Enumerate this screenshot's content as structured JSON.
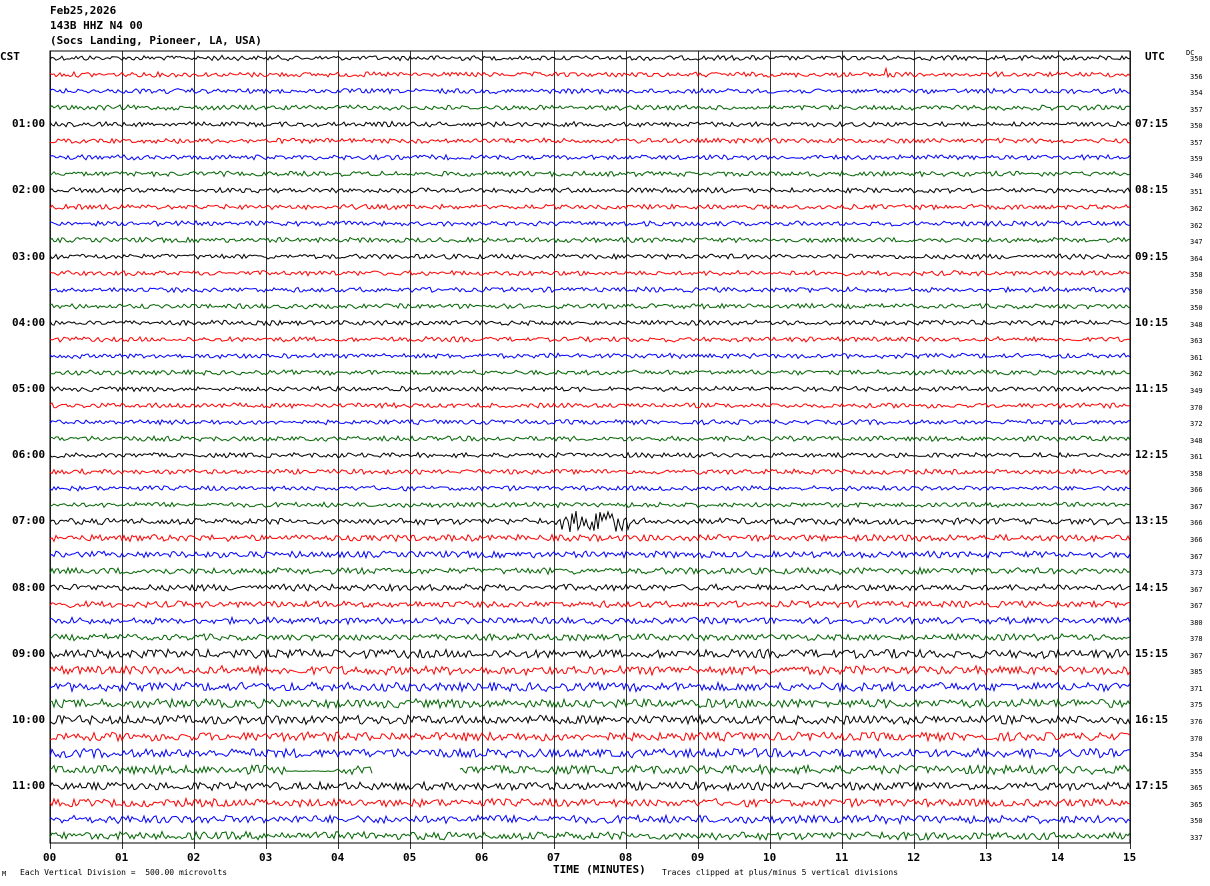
{
  "header": {
    "date": "Feb25,2026",
    "station": "143B HHZ N4 00",
    "location": "(Socs Landing, Pioneer, LA, USA)"
  },
  "left_tz": "CST",
  "right_tz": "UTC",
  "dc_label": "DC",
  "footer": {
    "scale": "Each Vertical Division =  500.00 microvolts",
    "xlabel": "TIME (MINUTES)",
    "clip": "Traces clipped at plus/minus 5 vertical divisions",
    "corner_mark": "M"
  },
  "colors": {
    "trace_cycle": [
      "#000000",
      "#ff0000",
      "#0000ff",
      "#006400"
    ],
    "grid": "#000000"
  },
  "chart_data": {
    "type": "line",
    "title": "Feb25,2026",
    "subtitle": "143B HHZ N4 00 (Socs Landing, Pioneer, LA, USA)",
    "xlabel": "TIME (MINUTES)",
    "xlim": [
      0,
      15
    ],
    "x_ticks": [
      "00",
      "01",
      "02",
      "03",
      "04",
      "05",
      "06",
      "07",
      "08",
      "09",
      "10",
      "11",
      "12",
      "13",
      "14",
      "15"
    ],
    "left_hour_labels": [
      "01:00",
      "02:00",
      "03:00",
      "04:00",
      "05:00",
      "06:00",
      "07:00",
      "08:00",
      "09:00",
      "10:00",
      "11:00"
    ],
    "right_hour_labels": [
      "07:15",
      "08:15",
      "09:15",
      "10:15",
      "11:15",
      "12:15",
      "13:15",
      "14:15",
      "15:15",
      "16:15",
      "17:15"
    ],
    "dc_offsets": [
      350,
      356,
      354,
      357,
      350,
      357,
      359,
      346,
      351,
      362,
      362,
      347,
      364,
      358,
      350,
      350,
      348,
      363,
      361,
      362,
      349,
      370,
      372,
      348,
      361,
      358,
      366,
      367,
      366,
      366,
      367,
      373,
      367,
      367,
      380,
      378,
      367,
      385,
      371,
      375,
      376,
      370,
      354,
      355,
      365,
      365,
      350,
      337
    ],
    "rows_per_hour": 4,
    "minutes_per_row": 15,
    "grid": true
  }
}
